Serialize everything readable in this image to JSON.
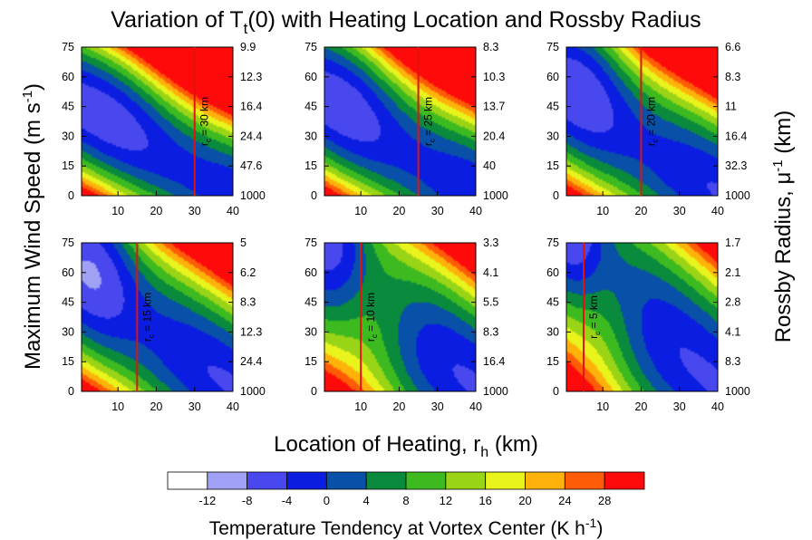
{
  "figure": {
    "title_prefix": "Variation of T",
    "title_sub": "t",
    "title_suffix": "(0) with Heating Location and Rossby Radius",
    "ylabel_left": "Maximum Wind Speed (m s",
    "ylabel_left_sup": "-1",
    "ylabel_left_end": ")",
    "ylabel_right": "Rossby Radius, μ",
    "ylabel_right_sup": "-1",
    "ylabel_right_end": " (km)",
    "xlabel": "Location of Heating, r",
    "xlabel_sub": "h",
    "xlabel_end": " (km)",
    "colorbar_title": "Temperature Tendency at Vortex Center (K h",
    "colorbar_title_sup": "-1",
    "colorbar_title_end": ")"
  },
  "chart_data": {
    "type": "heatmap",
    "x_ticks": [
      10,
      20,
      30,
      40
    ],
    "xlim": [
      0.5,
      40
    ],
    "y_ticks": [
      0,
      15,
      30,
      45,
      60,
      75
    ],
    "ylim": [
      0,
      75
    ],
    "grid": false,
    "contour_levels": [
      -12,
      -8,
      -4,
      0,
      4,
      8,
      12,
      16,
      20,
      24,
      28
    ],
    "colors": [
      "#ffffff",
      "#a0a0f5",
      "#4848ee",
      "#0b1de0",
      "#0850a8",
      "#0a8a3c",
      "#3dba20",
      "#9ad416",
      "#e8f41c",
      "#ffb30a",
      "#fe5c06",
      "#ff0a0a"
    ],
    "colorbar_labels": [
      "-12",
      "-8",
      "-4",
      "0",
      "4",
      "8",
      "12",
      "16",
      "20",
      "24",
      "28"
    ],
    "panels": [
      {
        "rc_km": 30,
        "rc_label": "r",
        "rc_sub": "c",
        "rc_text": " = 30 km",
        "rossby_ticks": [
          "1000",
          "47.6",
          "24.4",
          "16.4",
          "12.3",
          "9.9"
        ]
      },
      {
        "rc_km": 25,
        "rc_label": "r",
        "rc_sub": "c",
        "rc_text": " = 25 km",
        "rossby_ticks": [
          "1000",
          "40",
          "20.4",
          "13.7",
          "10.3",
          "8.3"
        ]
      },
      {
        "rc_km": 20,
        "rc_label": "r",
        "rc_sub": "c",
        "rc_text": " = 20 km",
        "rossby_ticks": [
          "1000",
          "32.3",
          "16.4",
          "11",
          "8.3",
          "6.6"
        ]
      },
      {
        "rc_km": 15,
        "rc_label": "r",
        "rc_sub": "c",
        "rc_text": " = 15 km",
        "rossby_ticks": [
          "1000",
          "24.4",
          "12.3",
          "8.3",
          "6.2",
          "5"
        ]
      },
      {
        "rc_km": 10,
        "rc_label": "r",
        "rc_sub": "c",
        "rc_text": " = 10 km",
        "rossby_ticks": [
          "1000",
          "16.4",
          "8.3",
          "5.5",
          "4.1",
          "3.3"
        ]
      },
      {
        "rc_km": 5,
        "rc_label": "r",
        "rc_sub": "c",
        "rc_text": " = 5 km",
        "rossby_ticks": [
          "1000",
          "8.3",
          "4.1",
          "2.8",
          "2.1",
          "1.7"
        ]
      }
    ]
  }
}
